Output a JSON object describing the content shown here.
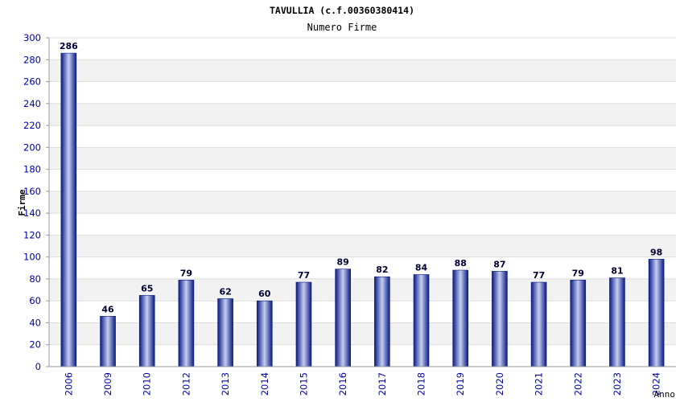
{
  "chart_data": {
    "type": "bar",
    "title": "TAVULLIA (c.f.00360380414)",
    "subtitle": "Numero Firme",
    "xlabel": "Anno",
    "ylabel": "Firme",
    "categories": [
      "2006",
      "2009",
      "2010",
      "2012",
      "2013",
      "2014",
      "2015",
      "2016",
      "2017",
      "2018",
      "2019",
      "2020",
      "2021",
      "2022",
      "2023",
      "2024"
    ],
    "values": [
      286,
      46,
      65,
      79,
      62,
      60,
      77,
      89,
      82,
      84,
      88,
      87,
      77,
      79,
      81,
      98
    ],
    "ylim": [
      0,
      300
    ],
    "yticks": [
      0,
      20,
      40,
      60,
      80,
      100,
      120,
      140,
      160,
      180,
      200,
      220,
      240,
      260,
      280,
      300
    ],
    "grid": true,
    "legend": "none",
    "colors": {
      "bar_dark": "#0a1a80",
      "bar_light": "#c4cef4",
      "tick_label": "#0000aa",
      "band": "#f2f2f2",
      "gridline": "#dddddd"
    }
  }
}
